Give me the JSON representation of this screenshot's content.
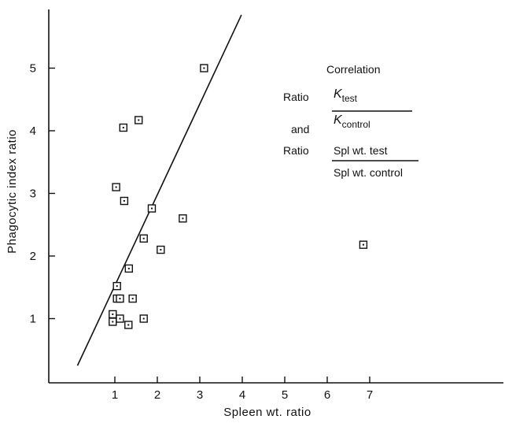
{
  "chart_data": {
    "type": "scatter",
    "title": "",
    "xlabel": "Spleen wt. ratio",
    "ylabel": "Phagocytic index ratio",
    "xlim": [
      0,
      7.2
    ],
    "ylim": [
      0,
      5.9
    ],
    "x_ticks": [
      1,
      2,
      3,
      4,
      5,
      6,
      7
    ],
    "y_ticks": [
      1,
      2,
      3,
      4,
      5
    ],
    "grid": false,
    "marker": "square",
    "points": [
      {
        "x": 0.95,
        "y": 1.07
      },
      {
        "x": 0.95,
        "y": 0.95
      },
      {
        "x": 1.03,
        "y": 3.1
      },
      {
        "x": 1.05,
        "y": 1.52
      },
      {
        "x": 1.05,
        "y": 1.32
      },
      {
        "x": 1.12,
        "y": 1.0
      },
      {
        "x": 1.12,
        "y": 1.32
      },
      {
        "x": 1.2,
        "y": 4.05
      },
      {
        "x": 1.22,
        "y": 2.88
      },
      {
        "x": 1.32,
        "y": 0.9
      },
      {
        "x": 1.33,
        "y": 1.8
      },
      {
        "x": 1.42,
        "y": 1.32
      },
      {
        "x": 1.56,
        "y": 4.17
      },
      {
        "x": 1.68,
        "y": 2.28
      },
      {
        "x": 1.68,
        "y": 1.0
      },
      {
        "x": 1.87,
        "y": 2.76
      },
      {
        "x": 2.08,
        "y": 2.1
      },
      {
        "x": 2.6,
        "y": 2.6
      },
      {
        "x": 3.1,
        "y": 5.0
      },
      {
        "x": 6.85,
        "y": 2.18
      }
    ],
    "fit_line": {
      "x1": 0.12,
      "y1": 0.25,
      "x2": 3.98,
      "y2": 5.85
    },
    "annotation": {
      "line1": "Correlation",
      "ratio_label": "Ratio",
      "and_label": "and",
      "k_symbol": "K",
      "k_num_sub": "test",
      "k_den_sub": "control",
      "spl_num": "Spl wt. test",
      "spl_den": "Spl wt. control"
    }
  },
  "colors": {
    "ink": "#111111",
    "background": "#ffffff"
  }
}
